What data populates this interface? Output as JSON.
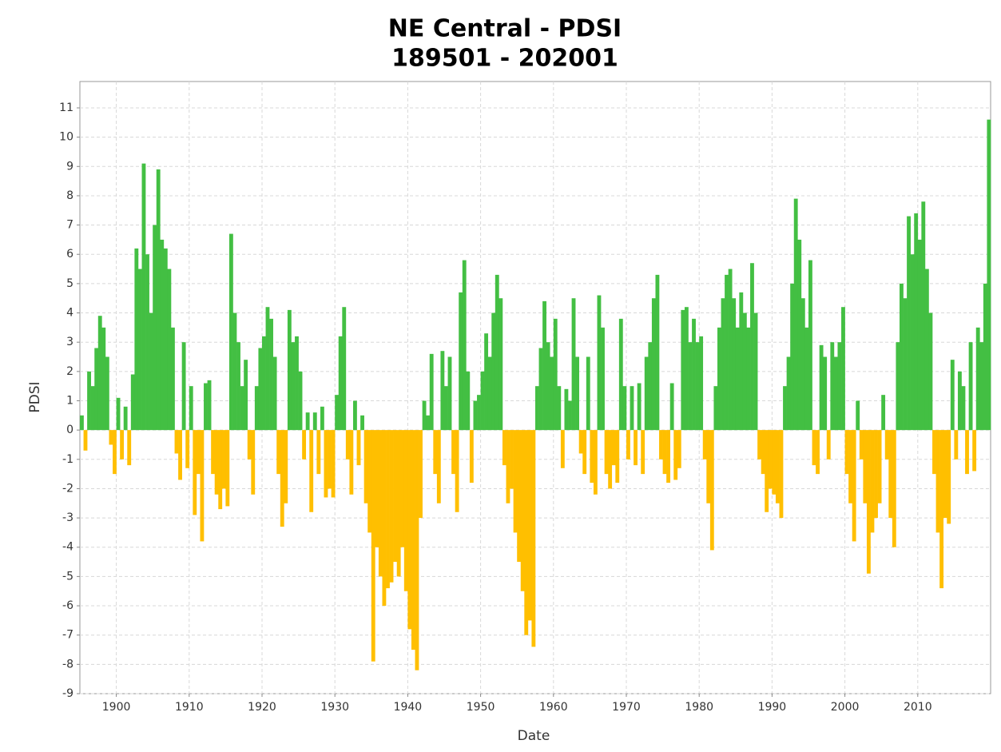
{
  "chart_data": {
    "type": "bar",
    "title": "NE Central - PDSI",
    "subtitle": "189501 - 202001",
    "xlabel": "Date",
    "ylabel": "PDSI",
    "positive_color": "#43bf43",
    "negative_color": "#ffbf00",
    "xlim": [
      1895,
      2020
    ],
    "ylim": [
      -9,
      11.9
    ],
    "xticks": [
      1900,
      1910,
      1920,
      1930,
      1940,
      1950,
      1960,
      1970,
      1980,
      1990,
      2000,
      2010
    ],
    "yticks": [
      -9,
      -8,
      -7,
      -6,
      -5,
      -4,
      -3,
      -2,
      -1,
      0,
      1,
      2,
      3,
      4,
      5,
      6,
      7,
      8,
      9,
      10,
      11
    ],
    "grid": true,
    "x": [
      1895,
      1895.5,
      1896,
      1896.5,
      1897,
      1897.5,
      1898,
      1898.5,
      1899,
      1899.5,
      1900,
      1900.5,
      1901,
      1901.5,
      1902,
      1902.5,
      1903,
      1903.5,
      1904,
      1904.5,
      1905,
      1905.5,
      1906,
      1906.5,
      1907,
      1907.5,
      1908,
      1908.5,
      1909,
      1909.5,
      1910,
      1910.5,
      1911,
      1911.5,
      1912,
      1912.5,
      1913,
      1913.5,
      1914,
      1914.5,
      1915,
      1915.5,
      1916,
      1916.5,
      1917,
      1917.5,
      1918,
      1918.5,
      1919,
      1919.5,
      1920,
      1920.5,
      1921,
      1921.5,
      1922,
      1922.5,
      1923,
      1923.5,
      1924,
      1924.5,
      1925,
      1925.5,
      1926,
      1926.5,
      1927,
      1927.5,
      1928,
      1928.5,
      1929,
      1929.5,
      1930,
      1930.5,
      1931,
      1931.5,
      1932,
      1932.5,
      1933,
      1933.5,
      1934,
      1934.5,
      1935,
      1935.5,
      1936,
      1936.5,
      1937,
      1937.5,
      1938,
      1938.5,
      1939,
      1939.5,
      1940,
      1940.5,
      1941,
      1941.5,
      1942,
      1942.5,
      1943,
      1943.5,
      1944,
      1944.5,
      1945,
      1945.5,
      1946,
      1946.5,
      1947,
      1947.5,
      1948,
      1948.5,
      1949,
      1949.5,
      1950,
      1950.5,
      1951,
      1951.5,
      1952,
      1952.5,
      1953,
      1953.5,
      1954,
      1954.5,
      1955,
      1955.5,
      1956,
      1956.5,
      1957,
      1957.5,
      1958,
      1958.5,
      1959,
      1959.5,
      1960,
      1960.5,
      1961,
      1961.5,
      1962,
      1962.5,
      1963,
      1963.5,
      1964,
      1964.5,
      1965,
      1965.5,
      1966,
      1966.5,
      1967,
      1967.5,
      1968,
      1968.5,
      1969,
      1969.5,
      1970,
      1970.5,
      1971,
      1971.5,
      1972,
      1972.5,
      1973,
      1973.5,
      1974,
      1974.5,
      1975,
      1975.5,
      1976,
      1976.5,
      1977,
      1977.5,
      1978,
      1978.5,
      1979,
      1979.5,
      1980,
      1980.5,
      1981,
      1981.5,
      1982,
      1982.5,
      1983,
      1983.5,
      1984,
      1984.5,
      1985,
      1985.5,
      1986,
      1986.5,
      1987,
      1987.5,
      1988,
      1988.5,
      1989,
      1989.5,
      1990,
      1990.5,
      1991,
      1991.5,
      1992,
      1992.5,
      1993,
      1993.5,
      1994,
      1994.5,
      1995,
      1995.5,
      1996,
      1996.5,
      1997,
      1997.5,
      1998,
      1998.5,
      1999,
      1999.5,
      2000,
      2000.5,
      2001,
      2001.5,
      2002,
      2002.5,
      2003,
      2003.5,
      2004,
      2004.5,
      2005,
      2005.5,
      2006,
      2006.5,
      2007,
      2007.5,
      2008,
      2008.5,
      2009,
      2009.5,
      2010,
      2010.5,
      2011,
      2011.5,
      2012,
      2012.5,
      2013,
      2013.5,
      2014,
      2014.5,
      2015,
      2015.5,
      2016,
      2016.5,
      2017,
      2017.5,
      2018,
      2018.5,
      2019,
      2019.5
    ],
    "values": [
      0.5,
      -0.7,
      2,
      1.5,
      2.8,
      3.9,
      3.5,
      2.5,
      -0.5,
      -1.5,
      1.1,
      -1,
      0.8,
      -1.2,
      1.9,
      6.2,
      5.5,
      9.1,
      6,
      4,
      7,
      8.9,
      6.5,
      6.2,
      5.5,
      3.5,
      -0.8,
      -1.7,
      3,
      -1.3,
      1.5,
      -2.9,
      -1.5,
      -3.8,
      1.6,
      1.7,
      -1.5,
      -2.2,
      -2.7,
      -2,
      -2.6,
      6.7,
      4,
      3,
      1.5,
      2.4,
      -1,
      -2.2,
      1.5,
      2.8,
      3.2,
      4.2,
      3.8,
      2.5,
      -1.5,
      -3.3,
      -2.5,
      4.1,
      3,
      3.2,
      2,
      -1,
      0.6,
      -2.8,
      0.6,
      -1.5,
      0.8,
      -2.3,
      -2,
      -2.3,
      1.2,
      3.2,
      4.2,
      -1,
      -2.2,
      1,
      -1.2,
      0.5,
      -2.5,
      -3.5,
      -7.9,
      -4,
      -5,
      -6,
      -5.4,
      -5.2,
      -4.5,
      -5,
      -4,
      -5.5,
      -6.8,
      -7.5,
      -8.2,
      -3,
      1,
      0.5,
      2.6,
      -1.5,
      -2.5,
      2.7,
      1.5,
      2.5,
      -1.5,
      -2.8,
      4.7,
      5.8,
      2,
      -1.8,
      1,
      1.2,
      2,
      3.3,
      2.5,
      4,
      5.3,
      4.5,
      -1.2,
      -2.5,
      -2,
      -3.5,
      -4.5,
      -5.5,
      -7,
      -6.5,
      -7.4,
      1.5,
      2.8,
      4.4,
      3,
      2.5,
      3.8,
      1.5,
      -1.3,
      1.4,
      1,
      4.5,
      2.5,
      -0.8,
      -1.5,
      2.5,
      -1.8,
      -2.2,
      4.6,
      3.5,
      -1.5,
      -2,
      -1.2,
      -1.8,
      3.8,
      1.5,
      -1,
      1.5,
      -1.2,
      1.6,
      -1.5,
      2.5,
      3,
      4.5,
      5.3,
      -1,
      -1.5,
      -1.8,
      1.6,
      -1.7,
      -1.3,
      4.1,
      4.2,
      3,
      3.8,
      3,
      3.2,
      -1,
      -2.5,
      -4.1,
      1.5,
      3.5,
      4.5,
      5.3,
      5.5,
      4.5,
      3.5,
      4.7,
      4,
      3.5,
      5.7,
      4,
      -1,
      -1.5,
      -2.8,
      -2,
      -2.2,
      -2.5,
      -3,
      1.5,
      2.5,
      5,
      7.9,
      6.5,
      4.5,
      3.5,
      5.8,
      -1.2,
      -1.5,
      2.9,
      2.5,
      -1,
      3,
      2.5,
      3,
      4.2,
      -1.5,
      -2.5,
      -3.8,
      1,
      -1,
      -2.5,
      -4.9,
      -3.5,
      -3,
      -2.5,
      1.2,
      -1,
      -3,
      -4,
      3,
      5,
      4.5,
      7.3,
      6,
      7.4,
      6.5,
      7.8,
      5.5,
      4,
      -1.5,
      -3.5,
      -5.4,
      -3,
      -3.2,
      2.4,
      -1,
      2,
      1.5,
      -1.5,
      3,
      -1.4,
      3.5,
      3,
      5,
      10.6
    ]
  }
}
